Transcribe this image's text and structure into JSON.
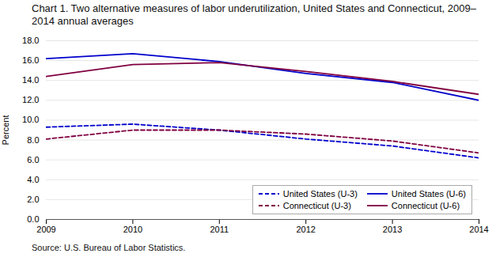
{
  "chart_data": {
    "type": "line",
    "title": "Chart 1. Two alternative measures of labor underutilization, United States and Connecticut, 2009–2014 annual averages",
    "source": "Source: U.S. Bureau of Labor Statistics.",
    "y_label": "Percent",
    "x": [
      2009,
      2010,
      2011,
      2012,
      2013,
      2014
    ],
    "series": [
      {
        "name": "United States (U-3)",
        "color": "#0000CC",
        "line_style": "dashed",
        "values": [
          9.3,
          9.6,
          9.0,
          8.1,
          7.4,
          6.2
        ]
      },
      {
        "name": "Connecticut (U-3)",
        "color": "#800040",
        "line_style": "dashed",
        "values": [
          8.1,
          9.0,
          9.0,
          8.6,
          7.9,
          6.7
        ]
      },
      {
        "name": "United States (U-6)",
        "color": "#0000CC",
        "line_style": "solid",
        "values": [
          16.2,
          16.7,
          15.9,
          14.7,
          13.8,
          12.0
        ]
      },
      {
        "name": "Connecticut (U-6)",
        "color": "#800040",
        "line_style": "solid",
        "values": [
          14.4,
          15.6,
          15.8,
          14.9,
          13.9,
          12.6
        ]
      }
    ],
    "xlim": [
      2009,
      2014
    ],
    "xticks": [
      2009,
      2010,
      2011,
      2012,
      2013,
      2014
    ],
    "ylim": [
      0.0,
      18.0
    ],
    "yticks": [
      {
        "value": 0,
        "label": "0.0"
      },
      {
        "value": 2,
        "label": "2.0"
      },
      {
        "value": 4,
        "label": "4.0"
      },
      {
        "value": 6,
        "label": "6.0"
      },
      {
        "value": 8,
        "label": "8.0"
      },
      {
        "value": 10,
        "label": "10.0"
      },
      {
        "value": 12,
        "label": "12.0"
      },
      {
        "value": 14,
        "label": "14.0"
      },
      {
        "value": 16,
        "label": "16.0"
      },
      {
        "value": 18,
        "label": "18.0"
      }
    ],
    "grid": true,
    "legend": "lower right"
  }
}
